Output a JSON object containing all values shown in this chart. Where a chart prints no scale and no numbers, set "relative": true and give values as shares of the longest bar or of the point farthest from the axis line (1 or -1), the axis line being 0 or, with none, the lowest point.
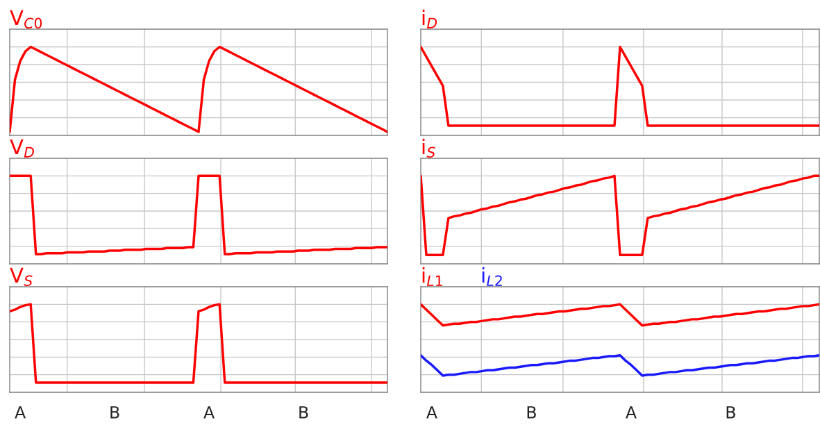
{
  "chart_data": [
    {
      "type": "line",
      "title": "V$_{C0}$",
      "relative": true,
      "tick_labels": false,
      "grid": true,
      "categories": [
        null,
        null,
        null,
        null,
        null,
        null,
        null,
        null,
        null,
        null,
        null,
        null,
        null,
        null,
        null,
        null,
        null,
        null,
        null,
        null,
        null,
        null,
        null,
        null,
        null,
        null,
        null,
        null,
        null,
        null,
        null,
        null,
        null,
        null,
        null,
        null,
        null,
        null,
        null,
        null,
        null,
        null,
        null,
        null,
        null,
        null,
        null,
        null,
        null,
        null,
        null,
        null,
        null,
        null,
        null,
        null,
        null,
        null,
        null,
        null,
        null,
        null,
        null,
        null,
        null,
        null,
        null,
        null,
        null,
        null,
        null,
        null,
        null
      ],
      "series": [
        {
          "color": "#ff0000",
          "values": [
            0.04,
            0.63,
            0.84,
            0.95,
            1,
            0.97,
            0.94,
            0.91,
            0.88,
            0.85,
            0.82,
            0.79,
            0.76,
            0.73,
            0.7,
            0.67,
            0.64,
            0.61,
            0.58,
            0.55,
            0.52,
            0.49,
            0.46,
            0.43,
            0.4,
            0.37,
            0.34,
            0.31,
            0.28,
            0.25,
            0.22,
            0.19,
            0.16,
            0.13,
            0.1,
            0.07,
            0.04,
            0.63,
            0.84,
            0.95,
            1,
            0.97,
            0.94,
            0.91,
            0.88,
            0.85,
            0.82,
            0.79,
            0.76,
            0.73,
            0.7,
            0.67,
            0.64,
            0.61,
            0.58,
            0.55,
            0.52,
            0.49,
            0.46,
            0.43,
            0.4,
            0.37,
            0.34,
            0.31,
            0.28,
            0.25,
            0.22,
            0.19,
            0.16,
            0.13,
            0.1,
            0.07,
            0.04
          ]
        }
      ]
    },
    {
      "type": "line",
      "title": "i$_{D}$",
      "relative": true,
      "tick_labels": false,
      "grid": true,
      "categories": [
        null,
        null,
        null,
        null,
        null,
        null,
        null,
        null,
        null,
        null,
        null,
        null,
        null,
        null,
        null,
        null,
        null,
        null,
        null,
        null,
        null,
        null,
        null,
        null,
        null,
        null,
        null,
        null,
        null,
        null,
        null,
        null,
        null,
        null,
        null,
        null,
        null,
        null,
        null,
        null,
        null,
        null,
        null,
        null,
        null,
        null,
        null,
        null,
        null,
        null,
        null,
        null,
        null,
        null,
        null,
        null,
        null,
        null,
        null,
        null,
        null,
        null,
        null,
        null,
        null,
        null,
        null,
        null,
        null,
        null,
        null,
        null,
        null
      ],
      "series": [
        {
          "color": "#ff0000",
          "values": [
            1,
            0.89,
            0.78,
            0.67,
            0.56,
            0.11,
            0.11,
            0.11,
            0.11,
            0.11,
            0.11,
            0.11,
            0.11,
            0.11,
            0.11,
            0.11,
            0.11,
            0.11,
            0.11,
            0.11,
            0.11,
            0.11,
            0.11,
            0.11,
            0.11,
            0.11,
            0.11,
            0.11,
            0.11,
            0.11,
            0.11,
            0.11,
            0.11,
            0.11,
            0.11,
            0.11,
            1,
            0.89,
            0.78,
            0.67,
            0.56,
            0.11,
            0.11,
            0.11,
            0.11,
            0.11,
            0.11,
            0.11,
            0.11,
            0.11,
            0.11,
            0.11,
            0.11,
            0.11,
            0.11,
            0.11,
            0.11,
            0.11,
            0.11,
            0.11,
            0.11,
            0.11,
            0.11,
            0.11,
            0.11,
            0.11,
            0.11,
            0.11,
            0.11,
            0.11,
            0.11,
            0.11,
            0.11
          ]
        }
      ]
    },
    {
      "type": "line",
      "title": "V$_{D}$",
      "relative": true,
      "tick_labels": false,
      "grid": true,
      "categories": [
        null,
        null,
        null,
        null,
        null,
        null,
        null,
        null,
        null,
        null,
        null,
        null,
        null,
        null,
        null,
        null,
        null,
        null,
        null,
        null,
        null,
        null,
        null,
        null,
        null,
        null,
        null,
        null,
        null,
        null,
        null,
        null,
        null,
        null,
        null,
        null,
        null,
        null,
        null,
        null,
        null,
        null,
        null,
        null,
        null,
        null,
        null,
        null,
        null,
        null,
        null,
        null,
        null,
        null,
        null,
        null,
        null,
        null,
        null,
        null,
        null,
        null,
        null,
        null,
        null,
        null,
        null,
        null,
        null,
        null,
        null,
        null,
        null
      ],
      "series": [
        {
          "color": "#ff0000",
          "values": [
            1,
            1,
            1,
            1,
            1,
            0.11,
            0.11,
            0.12,
            0.12,
            0.12,
            0.12,
            0.13,
            0.13,
            0.13,
            0.13,
            0.14,
            0.14,
            0.14,
            0.14,
            0.15,
            0.15,
            0.15,
            0.16,
            0.16,
            0.16,
            0.16,
            0.17,
            0.17,
            0.17,
            0.17,
            0.18,
            0.18,
            0.18,
            0.18,
            0.19,
            0.19,
            1,
            1,
            1,
            1,
            1,
            0.11,
            0.11,
            0.12,
            0.12,
            0.12,
            0.12,
            0.13,
            0.13,
            0.13,
            0.13,
            0.14,
            0.14,
            0.14,
            0.14,
            0.15,
            0.15,
            0.15,
            0.16,
            0.16,
            0.16,
            0.16,
            0.17,
            0.17,
            0.17,
            0.17,
            0.18,
            0.18,
            0.18,
            0.18,
            0.19,
            0.19,
            0.19
          ]
        }
      ]
    },
    {
      "type": "line",
      "title": "i$_{S}$",
      "relative": true,
      "tick_labels": false,
      "grid": true,
      "categories": [
        null,
        null,
        null,
        null,
        null,
        null,
        null,
        null,
        null,
        null,
        null,
        null,
        null,
        null,
        null,
        null,
        null,
        null,
        null,
        null,
        null,
        null,
        null,
        null,
        null,
        null,
        null,
        null,
        null,
        null,
        null,
        null,
        null,
        null,
        null,
        null,
        null,
        null,
        null,
        null,
        null,
        null,
        null,
        null,
        null,
        null,
        null,
        null,
        null,
        null,
        null,
        null,
        null,
        null,
        null,
        null,
        null,
        null,
        null,
        null,
        null,
        null,
        null,
        null,
        null,
        null,
        null,
        null,
        null,
        null,
        null,
        null,
        null
      ],
      "series": [
        {
          "color": "#ff0000",
          "values": [
            1,
            0.1,
            0.1,
            0.1,
            0.1,
            0.52,
            0.54,
            0.55,
            0.57,
            0.58,
            0.6,
            0.62,
            0.63,
            0.65,
            0.66,
            0.68,
            0.7,
            0.71,
            0.73,
            0.74,
            0.76,
            0.78,
            0.79,
            0.81,
            0.82,
            0.84,
            0.86,
            0.87,
            0.89,
            0.9,
            0.92,
            0.94,
            0.95,
            0.97,
            0.98,
            1,
            0.1,
            0.1,
            0.1,
            0.1,
            0.1,
            0.52,
            0.54,
            0.55,
            0.57,
            0.58,
            0.6,
            0.62,
            0.63,
            0.65,
            0.66,
            0.68,
            0.7,
            0.71,
            0.73,
            0.74,
            0.76,
            0.78,
            0.79,
            0.81,
            0.82,
            0.84,
            0.86,
            0.87,
            0.89,
            0.9,
            0.92,
            0.94,
            0.95,
            0.97,
            0.98,
            1,
            1
          ]
        }
      ]
    },
    {
      "type": "line",
      "title": "V$_{S}$",
      "relative": true,
      "tick_labels": "x",
      "grid": true,
      "categories": [
        null,
        null,
        "A",
        null,
        null,
        null,
        null,
        null,
        null,
        null,
        null,
        null,
        null,
        null,
        null,
        null,
        null,
        null,
        null,
        null,
        "B",
        null,
        null,
        null,
        null,
        null,
        null,
        null,
        null,
        null,
        null,
        null,
        null,
        null,
        null,
        null,
        null,
        null,
        "A",
        null,
        null,
        null,
        null,
        null,
        null,
        null,
        null,
        null,
        null,
        null,
        null,
        null,
        null,
        null,
        null,
        null,
        "B",
        null,
        null,
        null,
        null,
        null,
        null,
        null,
        null,
        null,
        null,
        null,
        null,
        null,
        null,
        null,
        null
      ],
      "series": [
        {
          "color": "#ff0000",
          "values": [
            0.92,
            0.94,
            0.97,
            0.99,
            1,
            0.11,
            0.11,
            0.11,
            0.11,
            0.11,
            0.11,
            0.11,
            0.11,
            0.11,
            0.11,
            0.11,
            0.11,
            0.11,
            0.11,
            0.11,
            0.11,
            0.11,
            0.11,
            0.11,
            0.11,
            0.11,
            0.11,
            0.11,
            0.11,
            0.11,
            0.11,
            0.11,
            0.11,
            0.11,
            0.11,
            0.11,
            0.92,
            0.94,
            0.97,
            0.99,
            1,
            0.11,
            0.11,
            0.11,
            0.11,
            0.11,
            0.11,
            0.11,
            0.11,
            0.11,
            0.11,
            0.11,
            0.11,
            0.11,
            0.11,
            0.11,
            0.11,
            0.11,
            0.11,
            0.11,
            0.11,
            0.11,
            0.11,
            0.11,
            0.11,
            0.11,
            0.11,
            0.11,
            0.11,
            0.11,
            0.11,
            0.11,
            0.11
          ]
        }
      ]
    },
    {
      "type": "line",
      "relative": true,
      "tick_labels": "x",
      "grid": true,
      "categories": [
        null,
        null,
        "A",
        null,
        null,
        null,
        null,
        null,
        null,
        null,
        null,
        null,
        null,
        null,
        null,
        null,
        null,
        null,
        null,
        null,
        "B",
        null,
        null,
        null,
        null,
        null,
        null,
        null,
        null,
        null,
        null,
        null,
        null,
        null,
        null,
        null,
        null,
        null,
        "A",
        null,
        null,
        null,
        null,
        null,
        null,
        null,
        null,
        null,
        null,
        null,
        null,
        null,
        null,
        null,
        null,
        null,
        "B",
        null,
        null,
        null,
        null,
        null,
        null,
        null,
        null,
        null,
        null,
        null,
        null,
        null,
        null,
        null,
        null
      ],
      "series": [
        {
          "name": "i$_{L1}$",
          "color": "#ff0000",
          "values": [
            1,
            0.94,
            0.88,
            0.82,
            0.76,
            0.77,
            0.78,
            0.78,
            0.79,
            0.8,
            0.8,
            0.81,
            0.82,
            0.83,
            0.83,
            0.84,
            0.85,
            0.86,
            0.86,
            0.87,
            0.88,
            0.89,
            0.89,
            0.9,
            0.91,
            0.92,
            0.92,
            0.93,
            0.94,
            0.95,
            0.95,
            0.96,
            0.97,
            0.98,
            0.98,
            0.99,
            1,
            0.94,
            0.88,
            0.82,
            0.76,
            0.77,
            0.78,
            0.78,
            0.79,
            0.8,
            0.8,
            0.81,
            0.82,
            0.83,
            0.83,
            0.84,
            0.85,
            0.86,
            0.86,
            0.87,
            0.88,
            0.89,
            0.89,
            0.9,
            0.91,
            0.92,
            0.92,
            0.93,
            0.94,
            0.95,
            0.95,
            0.96,
            0.97,
            0.98,
            0.98,
            0.99,
            1
          ]
        },
        {
          "name": "i$_{L2}$",
          "color": "#1a1aff",
          "values": [
            0.42,
            0.36,
            0.31,
            0.25,
            0.19,
            0.2,
            0.2,
            0.21,
            0.22,
            0.23,
            0.23,
            0.24,
            0.25,
            0.25,
            0.26,
            0.27,
            0.28,
            0.28,
            0.29,
            0.3,
            0.31,
            0.31,
            0.32,
            0.33,
            0.33,
            0.34,
            0.35,
            0.36,
            0.36,
            0.37,
            0.38,
            0.39,
            0.39,
            0.4,
            0.41,
            0.41,
            0.42,
            0.36,
            0.31,
            0.25,
            0.19,
            0.2,
            0.2,
            0.21,
            0.22,
            0.23,
            0.23,
            0.24,
            0.25,
            0.25,
            0.26,
            0.27,
            0.28,
            0.28,
            0.29,
            0.3,
            0.31,
            0.31,
            0.32,
            0.33,
            0.33,
            0.34,
            0.35,
            0.36,
            0.36,
            0.37,
            0.38,
            0.39,
            0.39,
            0.4,
            0.41,
            0.41,
            0.42
          ]
        }
      ]
    }
  ]
}
